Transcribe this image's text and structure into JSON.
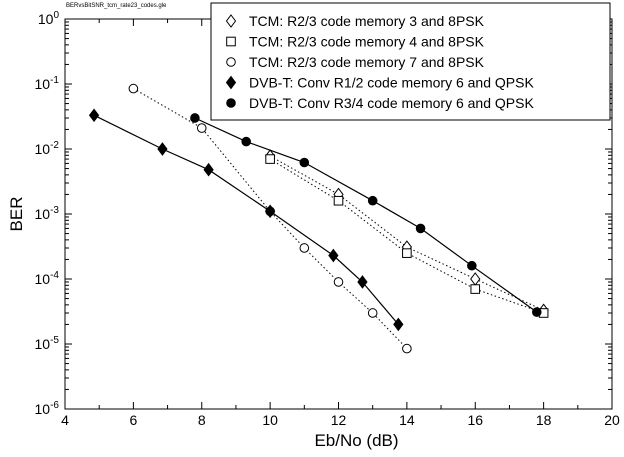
{
  "header": {
    "file_label": "BERvsBitSNR_tcm_rate23_codes.gle"
  },
  "chart_data": {
    "type": "line",
    "title": "",
    "xlabel": "Eb/No (dB)",
    "ylabel": "BER",
    "xlim": [
      4,
      20
    ],
    "ylim": [
      1e-06,
      1
    ],
    "yscale": "log",
    "grid": false,
    "legend_position": "top-right",
    "xticks": [
      "4",
      "6",
      "8",
      "10",
      "12",
      "14",
      "16",
      "18",
      "20"
    ],
    "ytick_base": "10",
    "ytick_exponents": [
      "0",
      "-1",
      "-2",
      "-3",
      "-4",
      "-5",
      "-6"
    ],
    "series": [
      {
        "name": "TCM: R2/3 code memory 3 and 8PSK",
        "marker": "diamond-open",
        "line": "dotted",
        "x": [
          10,
          12,
          14,
          16,
          18
        ],
        "y": [
          0.0078,
          0.002,
          0.00031,
          0.0001,
          3.3e-05
        ]
      },
      {
        "name": "TCM: R2/3 code memory 4 and 8PSK",
        "marker": "square-open",
        "line": "dotted",
        "x": [
          10,
          12,
          14,
          16,
          18
        ],
        "y": [
          0.007,
          0.0016,
          0.00025,
          7e-05,
          3e-05
        ]
      },
      {
        "name": "TCM: R2/3 code memory 7 and 8PSK",
        "marker": "circle-open",
        "line": "dotted",
        "x": [
          6,
          8,
          10,
          11,
          12,
          13,
          14
        ],
        "y": [
          0.085,
          0.021,
          0.0011,
          0.0003,
          9e-05,
          3e-05,
          8.5e-06
        ]
      },
      {
        "name": "DVB-T: Conv R1/2 code memory 6 and QPSK",
        "marker": "diamond-filled",
        "line": "solid",
        "x": [
          4.85,
          6.85,
          8.2,
          10,
          11.85,
          12.7,
          13.75
        ],
        "y": [
          0.033,
          0.01,
          0.0048,
          0.0011,
          0.00023,
          9e-05,
          2e-05
        ]
      },
      {
        "name": "DVB-T: Conv R3/4 code memory 6 and QPSK",
        "marker": "circle-filled",
        "line": "solid",
        "x": [
          7.8,
          9.3,
          11,
          13,
          14.4,
          15.9,
          17.8
        ],
        "y": [
          0.03,
          0.013,
          0.0062,
          0.0016,
          0.0006,
          0.00016,
          3.1e-05
        ]
      }
    ]
  }
}
